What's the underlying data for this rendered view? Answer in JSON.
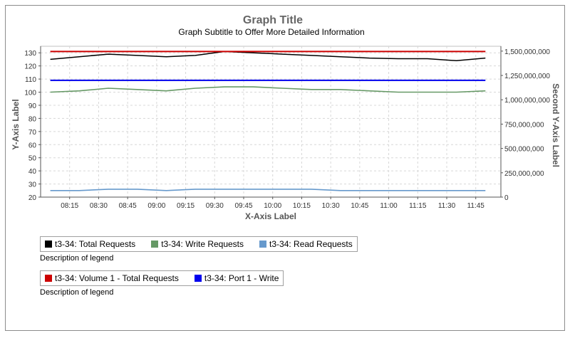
{
  "chart_data": {
    "type": "line",
    "title": "Graph Title",
    "subtitle": "Graph Subtitle to Offer More Detailed Information",
    "xlabel": "X-Axis Label",
    "ylabel": "Y-Axis Label",
    "y2label": "Second Y-Axis Label",
    "grid": true,
    "x_ticks": [
      "08:15",
      "08:30",
      "08:45",
      "09:00",
      "09:15",
      "09:30",
      "09:45",
      "10:00",
      "10:15",
      "10:30",
      "10:45",
      "11:00",
      "11:15",
      "11:30",
      "11:45"
    ],
    "x_points": [
      "08:05",
      "08:20",
      "08:35",
      "08:50",
      "09:05",
      "09:20",
      "09:35",
      "09:50",
      "10:05",
      "10:20",
      "10:35",
      "10:50",
      "11:05",
      "11:20",
      "11:35",
      "11:50"
    ],
    "ylim": [
      20,
      135
    ],
    "y_ticks": [
      20,
      30,
      40,
      50,
      60,
      70,
      80,
      90,
      100,
      110,
      120,
      130
    ],
    "y2lim": [
      0,
      1550000000
    ],
    "y2_ticks": [
      "0",
      "250,000,000",
      "500,000,000",
      "750,000,000",
      "1,000,000,000",
      "1,250,000,000",
      "1,500,000,000"
    ],
    "y2_tick_values": [
      0,
      250000000,
      500000000,
      750000000,
      1000000000,
      1250000000,
      1500000000
    ],
    "series": [
      {
        "name": "t3-34:  Total Requests",
        "color": "#000000",
        "axis": "left",
        "values": [
          125,
          127,
          129,
          128,
          127,
          128,
          131,
          130,
          129,
          128,
          127,
          126,
          125.5,
          125.5,
          124,
          126
        ]
      },
      {
        "name": "t3-34:  Write Requests",
        "color": "#669966",
        "axis": "left",
        "values": [
          100,
          101,
          103,
          102,
          101,
          103,
          104,
          104,
          103,
          102,
          102,
          101,
          100,
          100,
          100,
          101
        ]
      },
      {
        "name": "t3-34:  Read Requests",
        "color": "#6699cc",
        "axis": "left",
        "values": [
          25,
          25,
          26,
          26,
          25,
          26,
          26,
          26,
          26,
          26,
          25,
          25,
          25,
          25,
          25,
          25
        ]
      },
      {
        "name": "t3-34: Volume 1 -  Total Requests",
        "color": "#cc0000",
        "axis": "left",
        "values": [
          131,
          131,
          131,
          131,
          131,
          131,
          131,
          131,
          131,
          131,
          131,
          131,
          131,
          131,
          131,
          131
        ]
      },
      {
        "name": "t3-34: Port 1 -  Write",
        "color": "#0000ee",
        "axis": "left",
        "values": [
          109,
          109,
          109,
          109,
          109,
          109,
          109,
          109,
          109,
          109,
          109,
          109,
          109,
          109,
          109,
          109
        ]
      }
    ]
  },
  "legends": [
    {
      "entries": [
        0,
        1,
        2
      ],
      "description": "Description of legend"
    },
    {
      "entries": [
        3,
        4
      ],
      "description": "Description of legend"
    }
  ]
}
